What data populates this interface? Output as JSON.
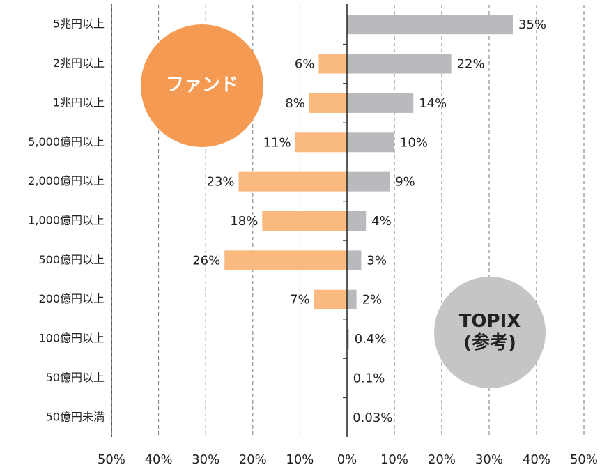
{
  "chart_data": [
    {
      "type": "bar",
      "orientation": "horizontal",
      "categories": [
        "5兆円以上",
        "2兆円以上",
        "1兆円以上",
        "5,000億円以上",
        "2,000億円以上",
        "1,000億円以上",
        "500億円以上",
        "200億円以上",
        "100億円以上",
        "50億円以上",
        "50億円未満"
      ],
      "series": [
        {
          "name": "ファンド",
          "color": "#f9b97f",
          "values": [
            null,
            6,
            8,
            11,
            23,
            18,
            26,
            7,
            null,
            null,
            null
          ],
          "value_labels": [
            null,
            "6%",
            "8%",
            "11%",
            "23%",
            "18%",
            "26%",
            "7%",
            null,
            null,
            null
          ]
        }
      ],
      "xlim": [
        50,
        0
      ],
      "xticks": [
        {
          "value": 50,
          "label": "50%"
        },
        {
          "value": 40,
          "label": "40%"
        },
        {
          "value": 30,
          "label": "30%"
        },
        {
          "value": 20,
          "label": "20%"
        },
        {
          "value": 10,
          "label": "10%"
        }
      ],
      "grid": true
    },
    {
      "type": "bar",
      "orientation": "horizontal",
      "series": [
        {
          "name": "TOPIX\n(参考)",
          "color": "#b9babd",
          "values": [
            35,
            22,
            14,
            10,
            9,
            4,
            3,
            2,
            0.4,
            0.1,
            0.03
          ],
          "value_labels": [
            "35%",
            "22%",
            "14%",
            "10%",
            "9%",
            "4%",
            "3%",
            "2%",
            "0.4%",
            "0.1%",
            "0.03%"
          ]
        }
      ],
      "xlim": [
        0,
        50
      ],
      "xticks": [
        {
          "value": 0,
          "label": "0%"
        },
        {
          "value": 10,
          "label": "10%"
        },
        {
          "value": 20,
          "label": "20%"
        },
        {
          "value": 30,
          "label": "30%"
        },
        {
          "value": 40,
          "label": "40%"
        },
        {
          "value": 50,
          "label": "50%"
        }
      ],
      "grid": true
    }
  ]
}
